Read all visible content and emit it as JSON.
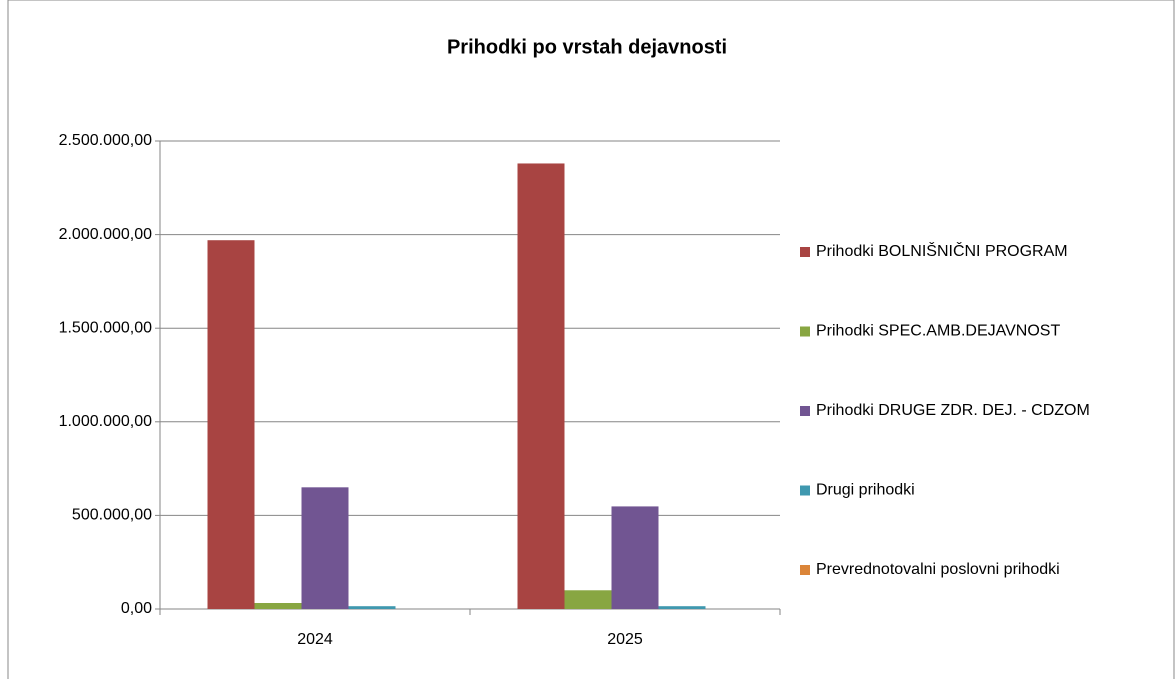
{
  "chart_data": {
    "type": "bar",
    "title": "Prihodki po vrstah dejavnosti",
    "categories": [
      "2024",
      "2025"
    ],
    "series": [
      {
        "name": "Prihodki  BOLNIŠNIČNI PROGRAM",
        "color": "#a84442",
        "values": [
          1970000,
          2380000
        ]
      },
      {
        "name": "Prihodki SPEC.AMB.DEJAVNOST",
        "color": "#88a642",
        "values": [
          32000,
          100000
        ]
      },
      {
        "name": "Prihodki DRUGE ZDR. DEJ. - CDZOM",
        "color": "#715592",
        "values": [
          650000,
          548000
        ]
      },
      {
        "name": "Drugi prihodki",
        "color": "#3f98af",
        "values": [
          15000,
          15000
        ]
      },
      {
        "name": "Prevrednotovalni poslovni prihodki",
        "color": "#db8539",
        "values": [
          0,
          0
        ]
      }
    ],
    "ylim": [
      0,
      2500000
    ],
    "yticks": [
      {
        "value": 0,
        "label": "0,00"
      },
      {
        "value": 500000,
        "label": "500.000,00"
      },
      {
        "value": 1000000,
        "label": "1.000.000,00"
      },
      {
        "value": 1500000,
        "label": "1.500.000,00"
      },
      {
        "value": 2000000,
        "label": "2.000.000,00"
      },
      {
        "value": 2500000,
        "label": "2.500.000,00"
      }
    ],
    "grid": true,
    "legend": "right"
  }
}
